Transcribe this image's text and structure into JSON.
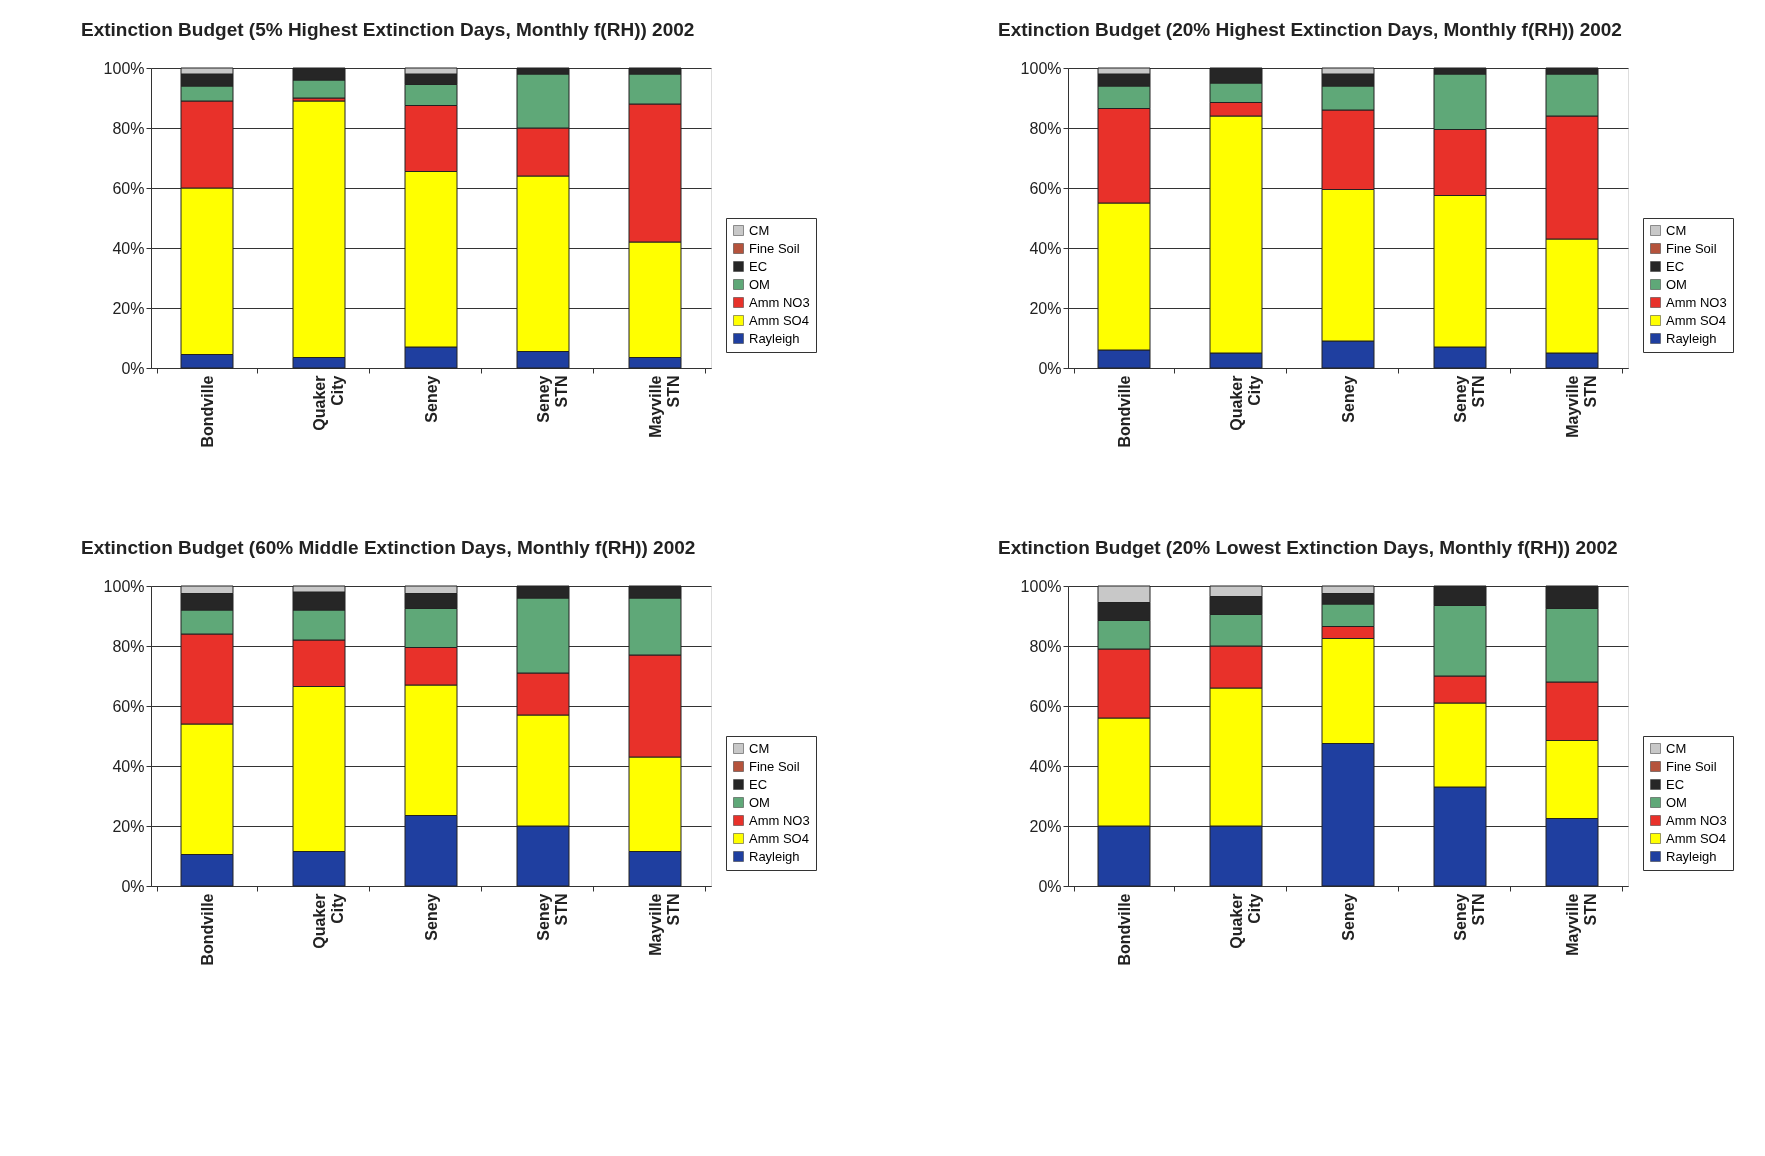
{
  "chart_data": [
    {
      "type": "bar",
      "stacked": true,
      "title": "Extinction Budget (5% Highest Extinction Days, Monthly f(RH)) 2002",
      "categories": [
        "Bondville",
        "Quaker City",
        "Seney",
        "Seney STN",
        "Mayville STN"
      ],
      "ylim": [
        0,
        100
      ],
      "yticks": [
        {
          "value": 0,
          "label": "0%"
        },
        {
          "value": 20,
          "label": "20%"
        },
        {
          "value": 40,
          "label": "40%"
        },
        {
          "value": 60,
          "label": "60%"
        },
        {
          "value": 80,
          "label": "80%"
        },
        {
          "value": 100,
          "label": "100%"
        }
      ],
      "grid": "y",
      "legend": "bottom right",
      "series": [
        {
          "name": "Rayleigh",
          "color": "#1f3fa0",
          "values": [
            4.5,
            3.5,
            7,
            5.5,
            3.5
          ]
        },
        {
          "name": "Amm SO4",
          "color": "#ffff00",
          "values": [
            55.5,
            85.5,
            58.5,
            58.5,
            38.5
          ]
        },
        {
          "name": "Amm NO3",
          "color": "#e8312a",
          "values": [
            29,
            1,
            22,
            16,
            46
          ]
        },
        {
          "name": "OM",
          "color": "#5fa878",
          "values": [
            5,
            6,
            7,
            18,
            10
          ]
        },
        {
          "name": "EC",
          "color": "#262626",
          "values": [
            4,
            4,
            3.5,
            2,
            2
          ]
        },
        {
          "name": "Fine Soil",
          "color": "#b5533c",
          "values": [
            0,
            0,
            0,
            0,
            0
          ]
        },
        {
          "name": "CM",
          "color": "#c8c8c8",
          "values": [
            2,
            0,
            2,
            0,
            0
          ]
        }
      ]
    },
    {
      "type": "bar",
      "stacked": true,
      "title": "Extinction Budget (20% Highest Extinction Days, Monthly f(RH)) 2002",
      "categories": [
        "Bondville",
        "Quaker City",
        "Seney",
        "Seney STN",
        "Mayville STN"
      ],
      "ylim": [
        0,
        100
      ],
      "yticks": [
        {
          "value": 0,
          "label": "0%"
        },
        {
          "value": 20,
          "label": "20%"
        },
        {
          "value": 40,
          "label": "40%"
        },
        {
          "value": 60,
          "label": "60%"
        },
        {
          "value": 80,
          "label": "80%"
        },
        {
          "value": 100,
          "label": "100%"
        }
      ],
      "grid": "y",
      "legend": "bottom right",
      "series": [
        {
          "name": "Rayleigh",
          "color": "#1f3fa0",
          "values": [
            6,
            5,
            9,
            7,
            5
          ]
        },
        {
          "name": "Amm SO4",
          "color": "#ffff00",
          "values": [
            49,
            79,
            50.5,
            50.5,
            38
          ]
        },
        {
          "name": "Amm NO3",
          "color": "#e8312a",
          "values": [
            31.5,
            4.5,
            26.5,
            22,
            41
          ]
        },
        {
          "name": "OM",
          "color": "#5fa878",
          "values": [
            7.5,
            6.5,
            8,
            18.5,
            14
          ]
        },
        {
          "name": "EC",
          "color": "#262626",
          "values": [
            4,
            5,
            4,
            2,
            2
          ]
        },
        {
          "name": "Fine Soil",
          "color": "#b5533c",
          "values": [
            0,
            0,
            0,
            0,
            0
          ]
        },
        {
          "name": "CM",
          "color": "#c8c8c8",
          "values": [
            2,
            0,
            2,
            0,
            0
          ]
        }
      ]
    },
    {
      "type": "bar",
      "stacked": true,
      "title": "Extinction Budget (60% Middle Extinction Days, Monthly f(RH)) 2002",
      "categories": [
        "Bondville",
        "Quaker City",
        "Seney",
        "Seney STN",
        "Mayville STN"
      ],
      "ylim": [
        0,
        100
      ],
      "yticks": [
        {
          "value": 0,
          "label": "0%"
        },
        {
          "value": 20,
          "label": "20%"
        },
        {
          "value": 40,
          "label": "40%"
        },
        {
          "value": 60,
          "label": "60%"
        },
        {
          "value": 80,
          "label": "80%"
        },
        {
          "value": 100,
          "label": "100%"
        }
      ],
      "grid": "y",
      "legend": "bottom right",
      "series": [
        {
          "name": "Rayleigh",
          "color": "#1f3fa0",
          "values": [
            10.5,
            11.5,
            23.5,
            20,
            11.5
          ]
        },
        {
          "name": "Amm SO4",
          "color": "#ffff00",
          "values": [
            43.5,
            55,
            43.5,
            37,
            31.5
          ]
        },
        {
          "name": "Amm NO3",
          "color": "#e8312a",
          "values": [
            30,
            15.5,
            12.5,
            14,
            34
          ]
        },
        {
          "name": "OM",
          "color": "#5fa878",
          "values": [
            8,
            10,
            13,
            25,
            19
          ]
        },
        {
          "name": "EC",
          "color": "#262626",
          "values": [
            5.5,
            6,
            5,
            4,
            4
          ]
        },
        {
          "name": "Fine Soil",
          "color": "#b5533c",
          "values": [
            0,
            0,
            0,
            0,
            0
          ]
        },
        {
          "name": "CM",
          "color": "#c8c8c8",
          "values": [
            2.5,
            2,
            2.5,
            0,
            0
          ]
        }
      ]
    },
    {
      "type": "bar",
      "stacked": true,
      "title": "Extinction Budget (20% Lowest Extinction Days, Monthly f(RH)) 2002",
      "categories": [
        "Bondville",
        "Quaker City",
        "Seney",
        "Seney STN",
        "Mayville STN"
      ],
      "ylim": [
        0,
        100
      ],
      "yticks": [
        {
          "value": 0,
          "label": "0%"
        },
        {
          "value": 20,
          "label": "20%"
        },
        {
          "value": 40,
          "label": "40%"
        },
        {
          "value": 60,
          "label": "60%"
        },
        {
          "value": 80,
          "label": "80%"
        },
        {
          "value": 100,
          "label": "100%"
        }
      ],
      "grid": "y",
      "legend": "bottom right",
      "series": [
        {
          "name": "Rayleigh",
          "color": "#1f3fa0",
          "values": [
            20,
            20,
            47.5,
            33,
            22.5
          ]
        },
        {
          "name": "Amm SO4",
          "color": "#ffff00",
          "values": [
            36,
            46,
            35,
            28,
            26
          ]
        },
        {
          "name": "Amm NO3",
          "color": "#e8312a",
          "values": [
            23,
            14,
            4,
            9,
            19.5
          ]
        },
        {
          "name": "OM",
          "color": "#5fa878",
          "values": [
            9.5,
            10.5,
            7.5,
            23.5,
            24.5
          ]
        },
        {
          "name": "EC",
          "color": "#262626",
          "values": [
            6,
            6,
            3.5,
            6.5,
            7.5
          ]
        },
        {
          "name": "Fine Soil",
          "color": "#b5533c",
          "values": [
            0,
            0,
            0,
            0,
            0
          ]
        },
        {
          "name": "CM",
          "color": "#c8c8c8",
          "values": [
            5.5,
            3.5,
            2.5,
            0,
            0
          ]
        }
      ]
    }
  ]
}
